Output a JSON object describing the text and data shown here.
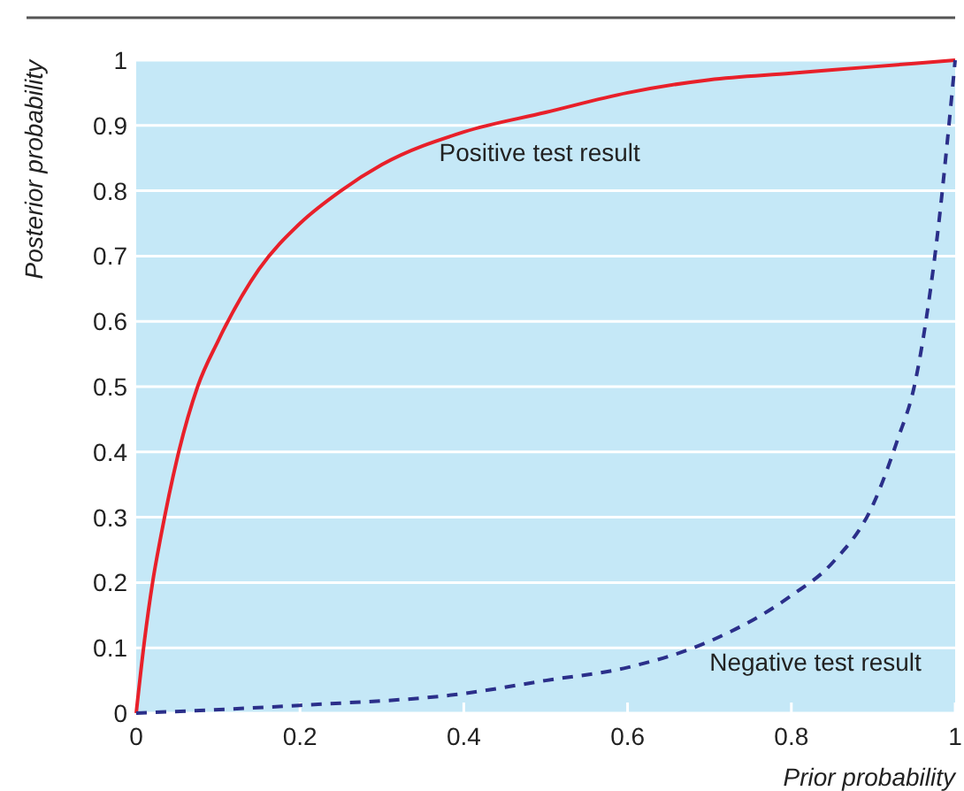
{
  "chart_data": {
    "type": "line",
    "xlabel": "Prior probability",
    "ylabel": "Posterior probability",
    "xlim": [
      0,
      1
    ],
    "ylim": [
      0,
      1
    ],
    "xticks": [
      0,
      0.2,
      0.4,
      0.6,
      0.8,
      1
    ],
    "yticks": [
      0,
      0.1,
      0.2,
      0.3,
      0.4,
      0.5,
      0.6,
      0.7,
      0.8,
      0.9,
      1
    ],
    "grid": "y",
    "legend": false,
    "marker": "none",
    "series": [
      {
        "name": "Positive test result",
        "color": "#e8202a",
        "line_style": "solid",
        "x": [
          0,
          0.01,
          0.02,
          0.03,
          0.05,
          0.075,
          0.1,
          0.15,
          0.2,
          0.25,
          0.3,
          0.4,
          0.5,
          0.6,
          0.7,
          0.8,
          0.9,
          1
        ],
        "values": [
          0,
          0.11,
          0.2,
          0.27,
          0.39,
          0.5,
          0.57,
          0.68,
          0.75,
          0.8,
          0.84,
          0.89,
          0.92,
          0.95,
          0.97,
          0.98,
          0.99,
          1
        ]
      },
      {
        "name": "Negative test result",
        "color": "#2b2f8a",
        "line_style": "dashed",
        "x": [
          0,
          0.2,
          0.4,
          0.5,
          0.6,
          0.7,
          0.8,
          0.85,
          0.9,
          0.93,
          0.95,
          0.97,
          0.98,
          0.99,
          1
        ],
        "values": [
          0,
          0.012,
          0.03,
          0.05,
          0.07,
          0.11,
          0.18,
          0.23,
          0.32,
          0.42,
          0.5,
          0.65,
          0.75,
          0.87,
          1
        ]
      }
    ]
  }
}
